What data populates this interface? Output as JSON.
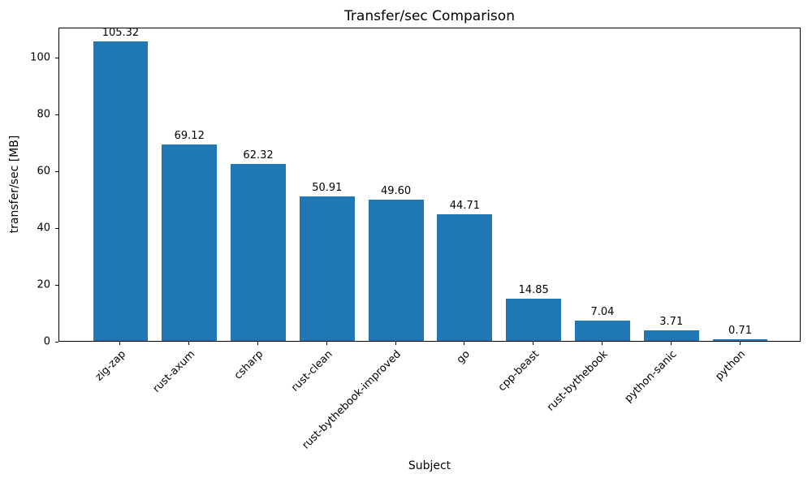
{
  "chart_data": {
    "type": "bar",
    "title": "Transfer/sec Comparison",
    "xlabel": "Subject",
    "ylabel": "transfer/sec [MB]",
    "categories": [
      "zig-zap",
      "rust-axum",
      "csharp",
      "rust-clean",
      "rust-bythebook-improved",
      "go",
      "cpp-beast",
      "rust-bythebook",
      "python-sanic",
      "python"
    ],
    "values": [
      105.32,
      69.12,
      62.32,
      50.91,
      49.6,
      44.71,
      14.85,
      7.04,
      3.71,
      0.71
    ],
    "value_labels": [
      "105.32",
      "69.12",
      "62.32",
      "50.91",
      "49.60",
      "44.71",
      "14.85",
      "7.04",
      "3.71",
      "0.71"
    ],
    "ytick_labels": [
      "0",
      "20",
      "40",
      "60",
      "80",
      "100"
    ],
    "yticks": [
      0,
      20,
      40,
      60,
      80,
      100
    ],
    "ylim": [
      0,
      110.6
    ],
    "bar_color": "#1f77b4",
    "grid": false,
    "legend_position": "none"
  }
}
